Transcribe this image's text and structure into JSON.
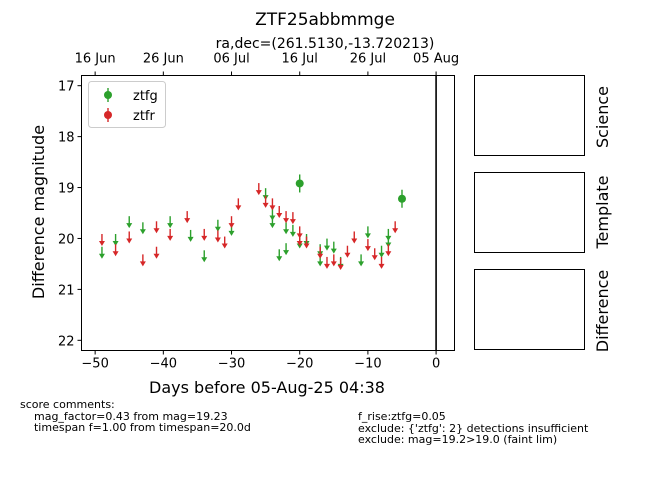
{
  "chart_data": {
    "type": "scatter",
    "title": "ZTF25abbmmge",
    "subtitle": "ra,dec=(261.5130,-13.720213)",
    "xlabel": "Days before 05-Aug-25 04:38",
    "ylabel": "Difference magnitude",
    "xlim": [
      -52,
      2.7
    ],
    "ylim": [
      22.2,
      16.8
    ],
    "y_inverted": true,
    "xticks": [
      -50,
      -40,
      -30,
      -20,
      -10,
      0
    ],
    "xtick_labels": [
      "−50",
      "−40",
      "−30",
      "−20",
      "−10",
      "0"
    ],
    "yticks": [
      17,
      18,
      19,
      20,
      21,
      22
    ],
    "top_axis": {
      "ticks": [
        -50,
        -40,
        -30,
        -20,
        -10,
        0
      ],
      "labels": [
        "16 Jun",
        "26 Jun",
        "06 Jul",
        "16 Jul",
        "26 Jul",
        "05 Aug"
      ]
    },
    "vertical_line_x": 0,
    "legend_placement": "top-left",
    "series": [
      {
        "name": "ztfg",
        "color": "#2ca02c",
        "detections": [
          {
            "x": -20.0,
            "y": 18.92
          },
          {
            "x": -5.0,
            "y": 19.22
          }
        ],
        "upper_limits": [
          {
            "x": -49.0,
            "y": 20.3
          },
          {
            "x": -47.0,
            "y": 20.05
          },
          {
            "x": -45.0,
            "y": 19.7
          },
          {
            "x": -43.0,
            "y": 19.82
          },
          {
            "x": -39.0,
            "y": 19.7
          },
          {
            "x": -36.0,
            "y": 19.97
          },
          {
            "x": -34.0,
            "y": 20.37
          },
          {
            "x": -32.0,
            "y": 19.77
          },
          {
            "x": -30.0,
            "y": 19.85
          },
          {
            "x": -25.0,
            "y": 19.15
          },
          {
            "x": -24.0,
            "y": 19.55
          },
          {
            "x": -24.0,
            "y": 19.7
          },
          {
            "x": -23.0,
            "y": 20.35
          },
          {
            "x": -22.0,
            "y": 19.82
          },
          {
            "x": -22.0,
            "y": 20.23
          },
          {
            "x": -21.0,
            "y": 19.87
          },
          {
            "x": -20.0,
            "y": 20.1
          },
          {
            "x": -19.0,
            "y": 20.05
          },
          {
            "x": -17.0,
            "y": 20.25
          },
          {
            "x": -17.0,
            "y": 20.45
          },
          {
            "x": -16.0,
            "y": 20.14
          },
          {
            "x": -15.0,
            "y": 20.2
          },
          {
            "x": -14.0,
            "y": 20.5
          },
          {
            "x": -11.0,
            "y": 20.45
          },
          {
            "x": -10.0,
            "y": 19.9
          },
          {
            "x": -8.0,
            "y": 20.28
          },
          {
            "x": -7.0,
            "y": 20.08
          },
          {
            "x": -7.0,
            "y": 19.95
          }
        ]
      },
      {
        "name": "ztfr",
        "color": "#d62728",
        "detections": [],
        "upper_limits": [
          {
            "x": -49.0,
            "y": 20.05
          },
          {
            "x": -47.0,
            "y": 20.25
          },
          {
            "x": -45.0,
            "y": 20.0
          },
          {
            "x": -43.0,
            "y": 20.45
          },
          {
            "x": -41.0,
            "y": 20.3
          },
          {
            "x": -41.0,
            "y": 19.8
          },
          {
            "x": -39.0,
            "y": 19.95
          },
          {
            "x": -36.5,
            "y": 19.6
          },
          {
            "x": -34.0,
            "y": 19.95
          },
          {
            "x": -32.0,
            "y": 19.98
          },
          {
            "x": -31.0,
            "y": 20.1
          },
          {
            "x": -30.0,
            "y": 19.7
          },
          {
            "x": -29.0,
            "y": 19.35
          },
          {
            "x": -26.0,
            "y": 19.05
          },
          {
            "x": -25.0,
            "y": 19.3
          },
          {
            "x": -24.0,
            "y": 19.35
          },
          {
            "x": -23.0,
            "y": 19.5
          },
          {
            "x": -22.0,
            "y": 19.6
          },
          {
            "x": -21.0,
            "y": 19.62
          },
          {
            "x": -20.0,
            "y": 19.9
          },
          {
            "x": -20.0,
            "y": 20.05
          },
          {
            "x": -19.0,
            "y": 20.1
          },
          {
            "x": -17.0,
            "y": 20.3
          },
          {
            "x": -16.0,
            "y": 20.5
          },
          {
            "x": -15.0,
            "y": 20.45
          },
          {
            "x": -14.0,
            "y": 20.52
          },
          {
            "x": -13.0,
            "y": 20.28
          },
          {
            "x": -12.0,
            "y": 20.0
          },
          {
            "x": -10.0,
            "y": 20.15
          },
          {
            "x": -9.0,
            "y": 20.33
          },
          {
            "x": -8.0,
            "y": 20.5
          },
          {
            "x": -7.0,
            "y": 20.25
          },
          {
            "x": -6.0,
            "y": 19.8
          }
        ]
      }
    ]
  },
  "panels": {
    "science": "Science",
    "template": "Template",
    "difference": "Difference"
  },
  "comments": {
    "left": "score comments:\n    mag_factor=0.43 from mag=19.23\n    timespan f=1.00 from timespan=20.0d",
    "right": "f_rise:ztfg=0.05\nexclude: {'ztfg': 2} detections insufficient\nexclude: mag=19.2>19.0 (faint lim)"
  }
}
